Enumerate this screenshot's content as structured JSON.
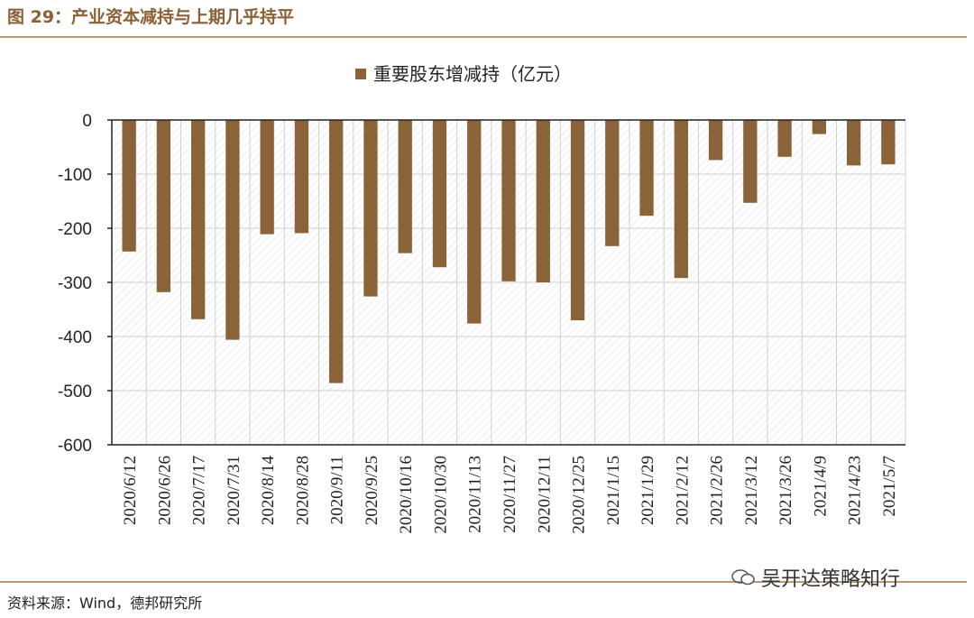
{
  "figure": {
    "title": "图 29：产业资本减持与上期几乎持平",
    "source": "资料来源：Wind，德邦研究所",
    "watermark": "吴开达策略知行"
  },
  "colors": {
    "bar": "#8b6339",
    "title": "#8a6034",
    "rule": "#b9987a"
  },
  "chart_data": {
    "type": "bar",
    "title": "",
    "xlabel": "",
    "ylabel": "",
    "legend": "top-center",
    "ylim": [
      -600,
      0
    ],
    "yticks": [
      0,
      -100,
      -200,
      -300,
      -400,
      -500,
      -600
    ],
    "ytick_labels": [
      "0",
      "-100",
      "-200",
      "-300",
      "-400",
      "-500",
      "-600"
    ],
    "grid": "hatched background",
    "categories": [
      "2020/6/12",
      "2020/6/26",
      "2020/7/17",
      "2020/7/31",
      "2020/8/14",
      "2020/8/28",
      "2020/9/11",
      "2020/9/25",
      "2020/10/16",
      "2020/10/30",
      "2020/11/13",
      "2020/11/27",
      "2020/12/11",
      "2020/12/25",
      "2021/1/15",
      "2021/1/29",
      "2021/2/12",
      "2021/2/26",
      "2021/3/12",
      "2021/3/26",
      "2021/4/9",
      "2021/4/23",
      "2021/5/7"
    ],
    "series": [
      {
        "name": "重要股东增减持（亿元）",
        "values": [
          -243,
          -318,
          -368,
          -406,
          -211,
          -209,
          -486,
          -326,
          -246,
          -272,
          -376,
          -298,
          -300,
          -370,
          -233,
          -177,
          -292,
          -74,
          -153,
          -68,
          -26,
          -84,
          -82
        ]
      }
    ]
  }
}
